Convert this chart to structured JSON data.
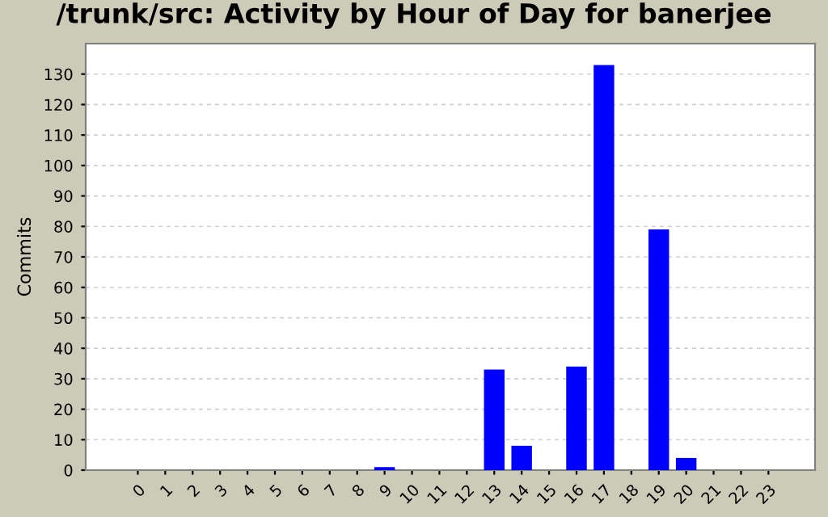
{
  "chart_data": {
    "type": "bar",
    "title": "/trunk/src: Activity by Hour of Day for banerjee",
    "ylabel": "Commits",
    "categories": [
      "0",
      "1",
      "2",
      "3",
      "4",
      "5",
      "6",
      "7",
      "8",
      "9",
      "10",
      "11",
      "12",
      "13",
      "14",
      "15",
      "16",
      "17",
      "18",
      "19",
      "20",
      "21",
      "22",
      "23"
    ],
    "values": [
      0,
      0,
      0,
      0,
      0,
      0,
      0,
      0,
      0,
      1,
      0,
      0,
      0,
      33,
      8,
      0,
      34,
      133,
      0,
      79,
      4,
      0,
      0,
      0
    ],
    "color": "#0000ff",
    "ylim": [
      0,
      140
    ],
    "yticks": [
      0,
      10,
      20,
      30,
      40,
      50,
      60,
      70,
      80,
      90,
      100,
      110,
      120,
      130
    ],
    "grid": "y",
    "legend": false
  }
}
